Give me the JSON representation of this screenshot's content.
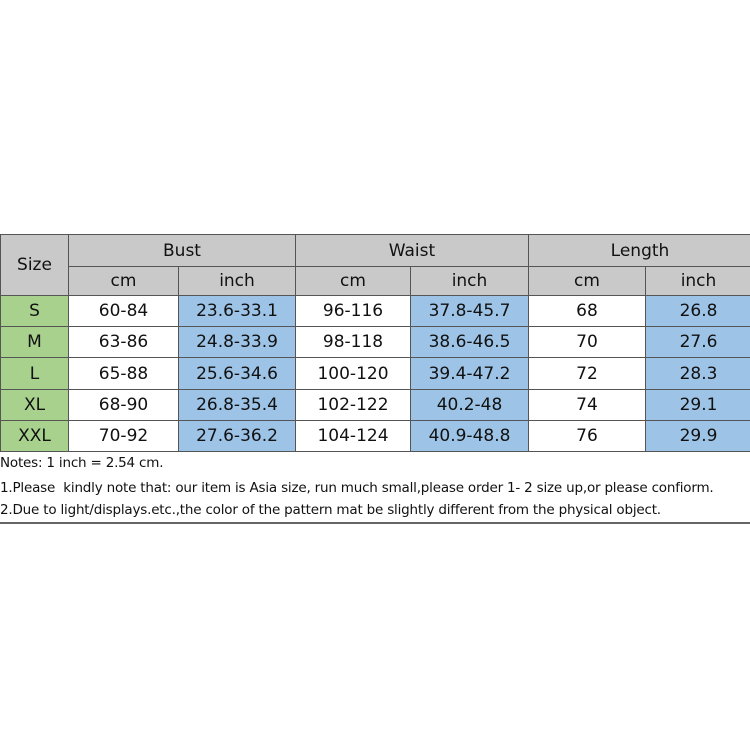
{
  "header": {
    "size": "Size",
    "groups": [
      "Bust",
      "Waist",
      "Length"
    ],
    "units": [
      "cm",
      "inch",
      "cm",
      "inch",
      "cm",
      "inch"
    ]
  },
  "rows": [
    [
      "S",
      "60-84",
      "23.6-33.1",
      "96-116",
      "37.8-45.7",
      "68",
      "26.8"
    ],
    [
      "M",
      "63-86",
      "24.8-33.9",
      "98-118",
      "38.6-46.5",
      "70",
      "27.6"
    ],
    [
      "L",
      "65-88",
      "25.6-34.6",
      "100-120",
      "39.4-47.2",
      "72",
      "28.3"
    ],
    [
      "XL",
      "68-90",
      "26.8-35.4",
      "102-122",
      "40.2-48",
      "74",
      "29.1"
    ],
    [
      "XXL",
      "70-92",
      "27.6-36.2",
      "104-124",
      "40.9-48.8",
      "76",
      "29.9"
    ]
  ],
  "notes": [
    "Notes: 1 inch = 2.54 cm.",
    "1.Please  kindly note that: our item is Asia size, run much small,please order 1- 2 size up,or please confiorm.",
    "2.Due to light/displays.etc.,the color of the pattern mat be slightly different from the physical object."
  ]
}
